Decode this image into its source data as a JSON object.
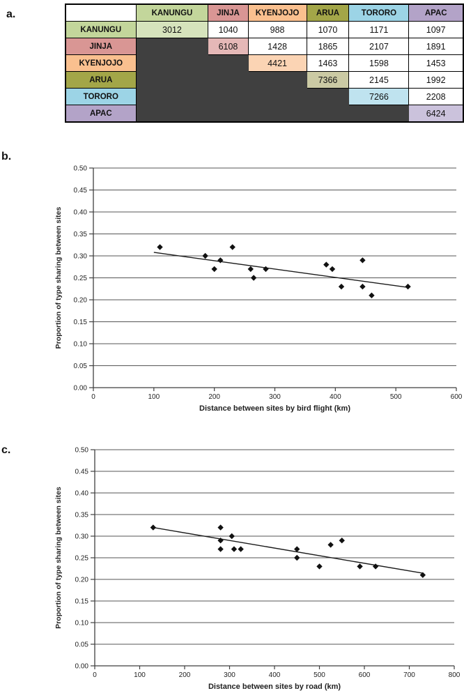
{
  "figure": {
    "panel_a_label": "a.",
    "panel_b_label": "b.",
    "panel_c_label": "c."
  },
  "table": {
    "columns": [
      "",
      "KANUNGU",
      "JINJA",
      "KYENJOJO",
      "ARUA",
      "TORORO",
      "APAC"
    ],
    "header_colors": [
      "#FFFFFF",
      "#C3D69B",
      "#D99694",
      "#FAC08F",
      "#A3A648",
      "#9CD4E6",
      "#B3A3C8"
    ],
    "row_header_colors": [
      "#C3D69B",
      "#D99694",
      "#FAC08F",
      "#A3A648",
      "#9CD4E6",
      "#B3A3C8"
    ],
    "diagonal_colors": [
      "#D6E3BC",
      "#E5B8B7",
      "#FBD4B4",
      "#CBCAA4",
      "#BFE3EF",
      "#CBC2DC"
    ],
    "empty_color": "#404040",
    "rows": [
      {
        "label": "KANUNGU",
        "values": [
          "3012",
          "1040",
          "988",
          "1070",
          "1171",
          "1097"
        ]
      },
      {
        "label": "JINJA",
        "values": [
          null,
          "6108",
          "1428",
          "1865",
          "2107",
          "1891"
        ]
      },
      {
        "label": "KYENJOJO",
        "values": [
          null,
          null,
          "4421",
          "1463",
          "1598",
          "1453"
        ]
      },
      {
        "label": "ARUA",
        "values": [
          null,
          null,
          null,
          "7366",
          "2145",
          "1992"
        ]
      },
      {
        "label": "TORORO",
        "values": [
          null,
          null,
          null,
          null,
          "7266",
          "2208"
        ]
      },
      {
        "label": "APAC",
        "values": [
          null,
          null,
          null,
          null,
          null,
          "6424"
        ]
      }
    ]
  },
  "chart_data": [
    {
      "panel": "a",
      "type": "table",
      "title": "Pairwise site matrix (diagonal = within-site value)",
      "sites": [
        "KANUNGU",
        "JINJA",
        "KYENJOJO",
        "ARUA",
        "TORORO",
        "APAC"
      ],
      "matrix_upper_triangle": [
        [
          3012,
          1040,
          988,
          1070,
          1171,
          1097
        ],
        [
          null,
          6108,
          1428,
          1865,
          2107,
          1891
        ],
        [
          null,
          null,
          4421,
          1463,
          1598,
          1453
        ],
        [
          null,
          null,
          null,
          7366,
          2145,
          1992
        ],
        [
          null,
          null,
          null,
          null,
          7266,
          2208
        ],
        [
          null,
          null,
          null,
          null,
          null,
          6424
        ]
      ]
    },
    {
      "panel": "b",
      "type": "scatter",
      "title": "",
      "xlabel": "Distance between sites by bird flight (km)",
      "ylabel": "Proportion of type sharing between sites",
      "xlim": [
        0,
        600
      ],
      "xtick_step": 100,
      "ylim": [
        0,
        0.5
      ],
      "ytick_step": 0.05,
      "grid": true,
      "legend": "none",
      "point_color": "#111111",
      "points": [
        [
          110,
          0.32
        ],
        [
          185,
          0.3
        ],
        [
          200,
          0.27
        ],
        [
          210,
          0.29
        ],
        [
          230,
          0.32
        ],
        [
          260,
          0.27
        ],
        [
          265,
          0.25
        ],
        [
          285,
          0.27
        ],
        [
          385,
          0.28
        ],
        [
          395,
          0.27
        ],
        [
          410,
          0.23
        ],
        [
          445,
          0.29
        ],
        [
          445,
          0.23
        ],
        [
          460,
          0.21
        ],
        [
          520,
          0.23
        ]
      ],
      "trendline": {
        "x1": 100,
        "y1": 0.308,
        "x2": 521,
        "y2": 0.228
      }
    },
    {
      "panel": "c",
      "type": "scatter",
      "title": "",
      "xlabel": "Distance between sites by road (km)",
      "ylabel": "Proportion of type sharing between sites",
      "xlim": [
        0,
        800
      ],
      "xtick_step": 100,
      "ylim": [
        0,
        0.5
      ],
      "ytick_step": 0.05,
      "grid": true,
      "legend": "none",
      "point_color": "#111111",
      "points": [
        [
          130,
          0.32
        ],
        [
          280,
          0.32
        ],
        [
          280,
          0.29
        ],
        [
          280,
          0.27
        ],
        [
          305,
          0.3
        ],
        [
          310,
          0.27
        ],
        [
          325,
          0.27
        ],
        [
          450,
          0.27
        ],
        [
          450,
          0.25
        ],
        [
          500,
          0.23
        ],
        [
          525,
          0.28
        ],
        [
          550,
          0.29
        ],
        [
          590,
          0.23
        ],
        [
          625,
          0.23
        ],
        [
          730,
          0.21
        ]
      ],
      "trendline": {
        "x1": 130,
        "y1": 0.32,
        "x2": 732,
        "y2": 0.214
      }
    }
  ],
  "chart_style": {
    "grid_color": "#555555",
    "axis_color": "#3f3f3f",
    "text_color": "#1f1f1f"
  }
}
